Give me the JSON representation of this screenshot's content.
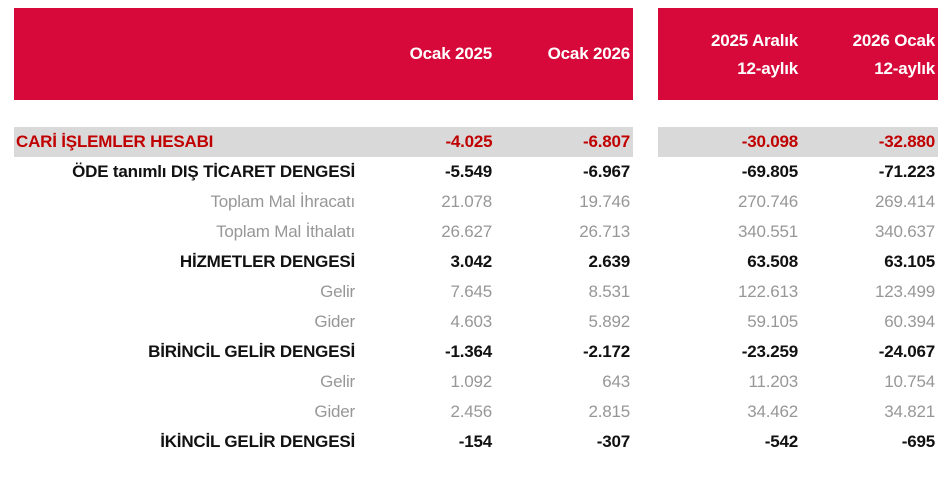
{
  "colors": {
    "header_red": "#D6093A",
    "band_gray": "#D9D9D9",
    "value_dark_red": "#C00000",
    "sub_text_gray": "#979797",
    "bold_text_black": "#111111"
  },
  "header": {
    "col1": "Ocak 2025",
    "col2": "Ocak 2026",
    "col3_line1": "2025 Aralık",
    "col3_line2": "12-aylık",
    "col4_line1": "2026 Ocak",
    "col4_line2": "12-aylık"
  },
  "rows": [
    {
      "label": "CARİ İŞLEMLER HESABI",
      "values": [
        "-4.025",
        "-6.807",
        "-30.098",
        "-32.880"
      ]
    },
    {
      "label": "ÖDE tanımlı DIŞ TİCARET DENGESİ",
      "values": [
        "-5.549",
        "-6.967",
        "-69.805",
        "-71.223"
      ]
    },
    {
      "label": "Toplam Mal İhracatı",
      "values": [
        "21.078",
        "19.746",
        "270.746",
        "269.414"
      ]
    },
    {
      "label": "Toplam Mal İthalatı",
      "values": [
        "26.627",
        "26.713",
        "340.551",
        "340.637"
      ]
    },
    {
      "label": "HİZMETLER DENGESİ",
      "values": [
        "3.042",
        "2.639",
        "63.508",
        "63.105"
      ]
    },
    {
      "label": "Gelir",
      "values": [
        "7.645",
        "8.531",
        "122.613",
        "123.499"
      ]
    },
    {
      "label": "Gider",
      "values": [
        "4.603",
        "5.892",
        "59.105",
        "60.394"
      ]
    },
    {
      "label": "BİRİNCİL GELİR DENGESİ",
      "values": [
        "-1.364",
        "-2.172",
        "-23.259",
        "-24.067"
      ]
    },
    {
      "label": "Gelir",
      "values": [
        "1.092",
        "643",
        "11.203",
        "10.754"
      ]
    },
    {
      "label": "Gider",
      "values": [
        "2.456",
        "2.815",
        "34.462",
        "34.821"
      ]
    },
    {
      "label": "İKİNCİL GELİR DENGESİ",
      "values": [
        "-154",
        "-307",
        "-542",
        "-695"
      ]
    }
  ],
  "chart_data": {
    "type": "table",
    "title": "",
    "columns": [
      "",
      "Ocak 2025",
      "Ocak 2026",
      "2025 Aralık 12-aylık",
      "2026 Ocak 12-aylık"
    ],
    "rows": [
      [
        "CARİ İŞLEMLER HESABI",
        -4025,
        -6807,
        -30098,
        -32880
      ],
      [
        "ÖDE tanımlı DIŞ TİCARET DENGESİ",
        -5549,
        -6967,
        -69805,
        -71223
      ],
      [
        "Toplam Mal İhracatı",
        21078,
        19746,
        270746,
        269414
      ],
      [
        "Toplam Mal İthalatı",
        26627,
        26713,
        340551,
        340637
      ],
      [
        "HİZMETLER DENGESİ",
        3042,
        2639,
        63508,
        63105
      ],
      [
        "Gelir",
        7645,
        8531,
        122613,
        123499
      ],
      [
        "Gider",
        4603,
        5892,
        59105,
        60394
      ],
      [
        "BİRİNCİL GELİR DENGESİ",
        -1364,
        -2172,
        -23259,
        -24067
      ],
      [
        "Gelir",
        1092,
        643,
        11203,
        10754
      ],
      [
        "Gider",
        2456,
        2815,
        34462,
        34821
      ],
      [
        "İKİNCİL GELİR DENGESİ",
        -154,
        -307,
        -542,
        -695
      ]
    ]
  }
}
